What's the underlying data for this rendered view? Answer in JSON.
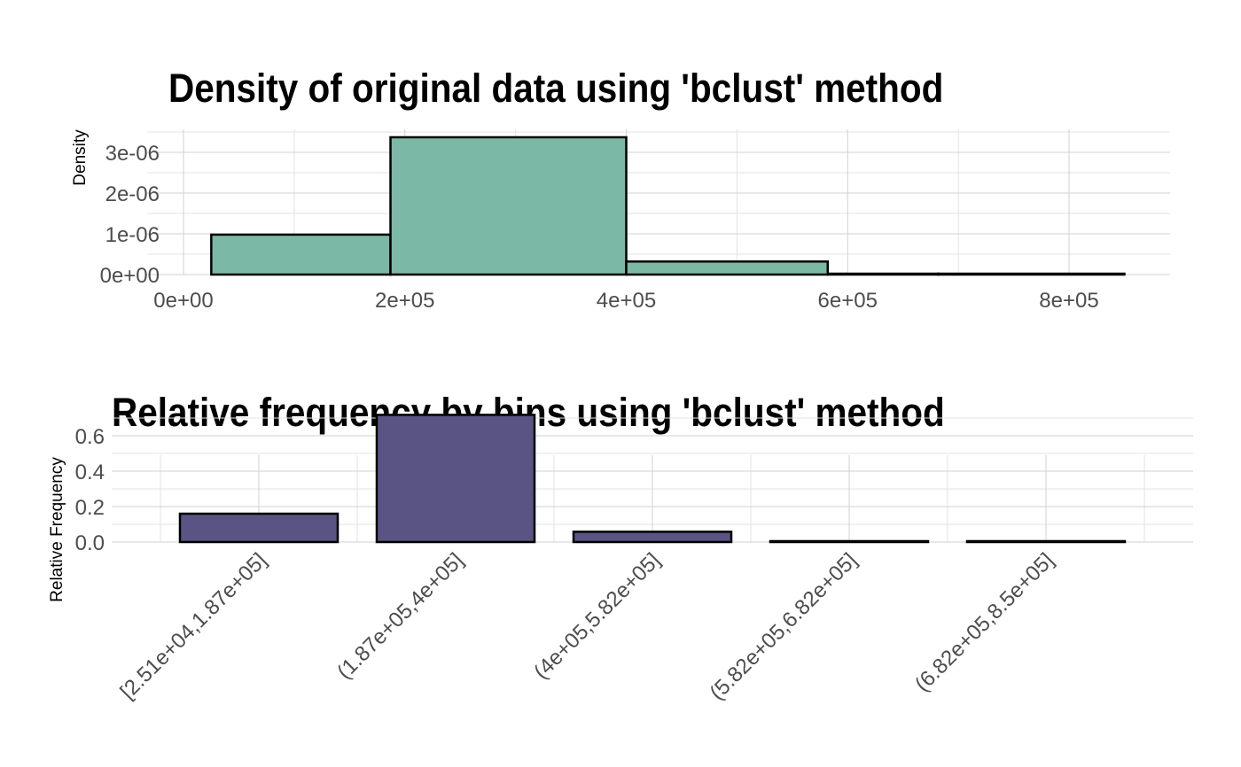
{
  "chart_data": [
    {
      "type": "bar",
      "title": "Density of original data using 'bclust' method",
      "xlabel": "",
      "ylabel": "Density",
      "xlim": [
        0,
        890000
      ],
      "ylim": [
        0,
        3.5e-06
      ],
      "x_ticks": [
        "0e+00",
        "2e+05",
        "4e+05",
        "6e+05",
        "8e+05"
      ],
      "x_tick_values": [
        0,
        200000,
        400000,
        600000,
        800000
      ],
      "y_ticks": [
        "0e+00",
        "1e-06",
        "2e-06",
        "3e-06"
      ],
      "y_tick_values": [
        0,
        1e-06,
        2e-06,
        3e-06
      ],
      "bins": [
        {
          "start": 25100,
          "end": 187000,
          "value": 9.8e-07
        },
        {
          "start": 187000,
          "end": 400000,
          "value": 3.37e-06
        },
        {
          "start": 400000,
          "end": 582000,
          "value": 3.2e-07
        },
        {
          "start": 582000,
          "end": 682000,
          "value": 1e-08
        },
        {
          "start": 682000,
          "end": 850000,
          "value": 2e-08
        }
      ],
      "fill_color": "#7bb9a6",
      "grid": true
    },
    {
      "type": "bar",
      "title": "Relative frequency by bins using 'bclust' method",
      "xlabel": "",
      "ylabel": "Relative Frequency",
      "ylim": [
        0,
        0.75
      ],
      "y_ticks": [
        "0.0",
        "0.2",
        "0.4",
        "0.6"
      ],
      "y_tick_values": [
        0,
        0.2,
        0.4,
        0.6
      ],
      "categories": [
        "[2.51e+04,1.87e+05]",
        "(1.87e+05,4e+05]",
        "(4e+05,5.82e+05]",
        "(5.82e+05,6.82e+05]",
        "(6.82e+05,8.5e+05]"
      ],
      "values": [
        0.16,
        0.718,
        0.058,
        0.001,
        0.004
      ],
      "fill_color": "#5a5485",
      "grid": true
    }
  ]
}
